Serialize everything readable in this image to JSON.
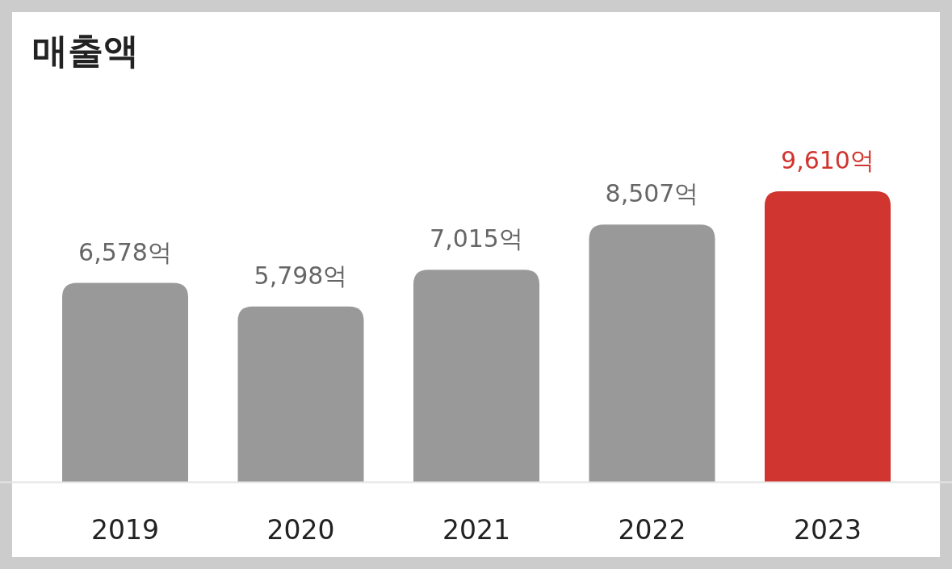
{
  "chart_data": {
    "type": "bar",
    "title": "매출액",
    "categories": [
      "2019",
      "2020",
      "2021",
      "2022",
      "2023"
    ],
    "values": [
      6578,
      5798,
      7015,
      8507,
      9610
    ],
    "colors": [
      "#999999",
      "#999999",
      "#999999",
      "#999999",
      "#d0352f"
    ],
    "value_labels": [
      "6,578억",
      "5,798억",
      "7,015억",
      "8,507억",
      "9,610억"
    ]
  }
}
